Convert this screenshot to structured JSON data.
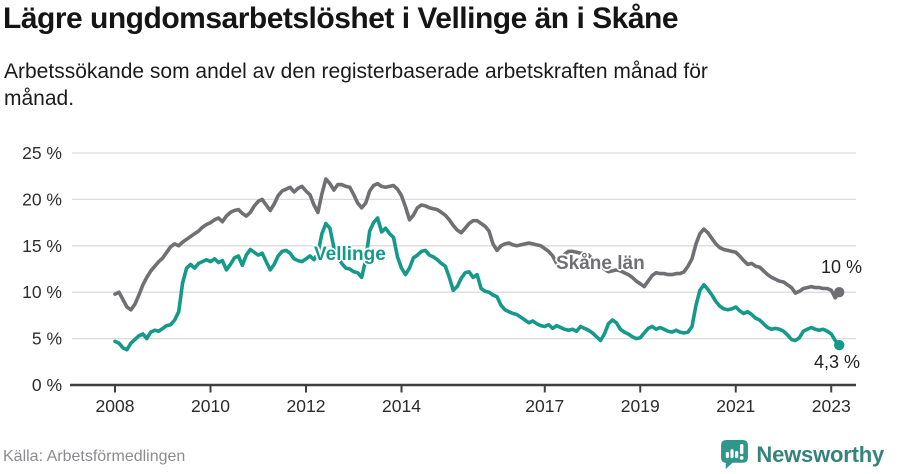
{
  "footer": {
    "brand": "Newsworthy"
  },
  "chart_data": {
    "type": "line",
    "title": "Lägre ungdomsarbetslöshet i Vellinge än i Skåne",
    "subtitle": "Arbetssökande som andel av den registerbaserade arbetskraften månad för månad.",
    "source": "Källa: Arbetsförmedlingen",
    "x_start": "2008-01",
    "x_end": "2023-03",
    "x_step_months": 1,
    "x_tick_years": [
      2008,
      2010,
      2012,
      2014,
      2017,
      2019,
      2021,
      2023
    ],
    "x_tick_labels": [
      "2008",
      "2010",
      "2012",
      "2014",
      "2017",
      "2019",
      "2021",
      "2023"
    ],
    "y_ticks": [
      0,
      5,
      10,
      15,
      20,
      25
    ],
    "y_tick_labels": [
      "0 %",
      "5 %",
      "10 %",
      "15 %",
      "20 %",
      "25 %"
    ],
    "ylim": [
      0,
      25
    ],
    "grid": "horizontal",
    "legend_position": "inline-labels",
    "series": [
      {
        "name": "Vellinge",
        "color": "#14998a",
        "end_value": 4.3,
        "end_label": "4,3 %",
        "values": [
          4.7,
          4.5,
          4.0,
          3.8,
          4.5,
          4.9,
          5.3,
          5.5,
          5.0,
          5.7,
          5.9,
          5.8,
          6.1,
          6.4,
          6.5,
          7.0,
          7.9,
          11.0,
          12.6,
          13.0,
          12.6,
          13.1,
          13.3,
          13.5,
          13.3,
          13.6,
          13.2,
          13.4,
          12.4,
          13.0,
          13.7,
          13.9,
          12.9,
          14.0,
          14.6,
          14.3,
          14.0,
          14.2,
          13.3,
          12.4,
          13.0,
          13.9,
          14.4,
          14.5,
          14.2,
          13.6,
          13.4,
          13.3,
          13.6,
          13.9,
          13.5,
          14.2,
          16.3,
          17.4,
          16.9,
          14.8,
          13.8,
          13.1,
          12.6,
          12.5,
          12.2,
          12.1,
          11.6,
          13.5,
          16.6,
          17.5,
          18.0,
          16.5,
          16.9,
          16.3,
          15.9,
          13.8,
          12.6,
          11.9,
          12.6,
          13.7,
          14.0,
          14.4,
          14.5,
          14.0,
          13.8,
          13.5,
          13.1,
          12.8,
          11.6,
          10.2,
          10.6,
          11.5,
          12.1,
          12.2,
          11.6,
          11.9,
          10.4,
          10.1,
          10.0,
          9.7,
          9.5,
          8.6,
          8.1,
          7.9,
          7.7,
          7.6,
          7.3,
          7.0,
          6.7,
          6.9,
          6.6,
          6.4,
          6.3,
          6.5,
          6.1,
          6.4,
          6.2,
          6.0,
          5.9,
          6.0,
          5.8,
          6.3,
          6.1,
          5.9,
          5.6,
          5.2,
          4.8,
          5.5,
          6.6,
          7.0,
          6.7,
          6.0,
          5.7,
          5.5,
          5.2,
          5.0,
          5.1,
          5.6,
          6.1,
          6.3,
          6.0,
          6.2,
          6.0,
          5.8,
          5.7,
          5.9,
          5.7,
          5.6,
          5.7,
          6.3,
          8.6,
          10.2,
          10.8,
          10.3,
          9.7,
          9.0,
          8.5,
          8.2,
          8.1,
          8.2,
          8.4,
          8.0,
          7.7,
          7.9,
          7.6,
          7.2,
          7.0,
          6.6,
          6.2,
          6.0,
          6.1,
          6.0,
          5.8,
          5.4,
          4.9,
          4.8,
          5.1,
          5.8,
          6.0,
          6.2,
          6.0,
          5.9,
          6.0,
          5.8,
          5.5,
          4.8,
          4.3
        ]
      },
      {
        "name": "Skåne län",
        "color": "#6f6f74",
        "end_value": 10.0,
        "end_label": "10 %",
        "values": [
          9.8,
          10.0,
          9.2,
          8.4,
          8.1,
          8.7,
          9.7,
          10.8,
          11.6,
          12.3,
          12.8,
          13.3,
          13.7,
          14.3,
          14.9,
          15.2,
          15.0,
          15.4,
          15.7,
          16.0,
          16.3,
          16.6,
          17.0,
          17.3,
          17.5,
          17.8,
          18.0,
          17.6,
          18.2,
          18.6,
          18.8,
          18.9,
          18.5,
          18.2,
          18.6,
          19.3,
          19.8,
          20.0,
          19.4,
          18.8,
          19.5,
          20.4,
          20.9,
          21.1,
          21.3,
          20.8,
          21.2,
          21.4,
          20.9,
          20.5,
          19.4,
          18.6,
          20.6,
          22.2,
          21.7,
          21.0,
          21.6,
          21.6,
          21.4,
          21.3,
          20.5,
          19.6,
          19.1,
          19.6,
          20.9,
          21.5,
          21.7,
          21.4,
          21.3,
          21.4,
          21.5,
          21.1,
          20.4,
          19.2,
          17.8,
          18.3,
          19.1,
          19.4,
          19.3,
          19.1,
          19.0,
          18.9,
          18.6,
          18.3,
          17.8,
          17.2,
          16.7,
          16.4,
          16.9,
          17.4,
          17.7,
          17.7,
          17.4,
          17.1,
          16.6,
          15.2,
          14.5,
          15.0,
          15.2,
          15.3,
          15.1,
          15.0,
          15.1,
          15.2,
          15.3,
          15.2,
          15.1,
          15.0,
          14.7,
          14.4,
          13.9,
          13.1,
          13.6,
          14.1,
          14.4,
          14.4,
          14.3,
          14.2,
          14.2,
          14.0,
          13.6,
          13.2,
          12.9,
          12.5,
          12.2,
          12.3,
          12.4,
          12.3,
          12.1,
          11.9,
          11.6,
          11.2,
          10.9,
          10.6,
          11.2,
          11.8,
          12.1,
          12.0,
          12.0,
          11.9,
          11.9,
          12.0,
          12.0,
          12.2,
          12.8,
          13.6,
          15.2,
          16.3,
          16.8,
          16.4,
          15.8,
          15.2,
          14.8,
          14.6,
          14.5,
          14.4,
          14.3,
          13.9,
          13.4,
          13.0,
          13.1,
          12.8,
          12.7,
          12.3,
          11.9,
          11.6,
          11.4,
          11.2,
          11.1,
          10.8,
          10.5,
          9.9,
          10.1,
          10.4,
          10.5,
          10.6,
          10.5,
          10.5,
          10.4,
          10.4,
          10.2,
          9.4,
          10.0
        ]
      }
    ]
  }
}
